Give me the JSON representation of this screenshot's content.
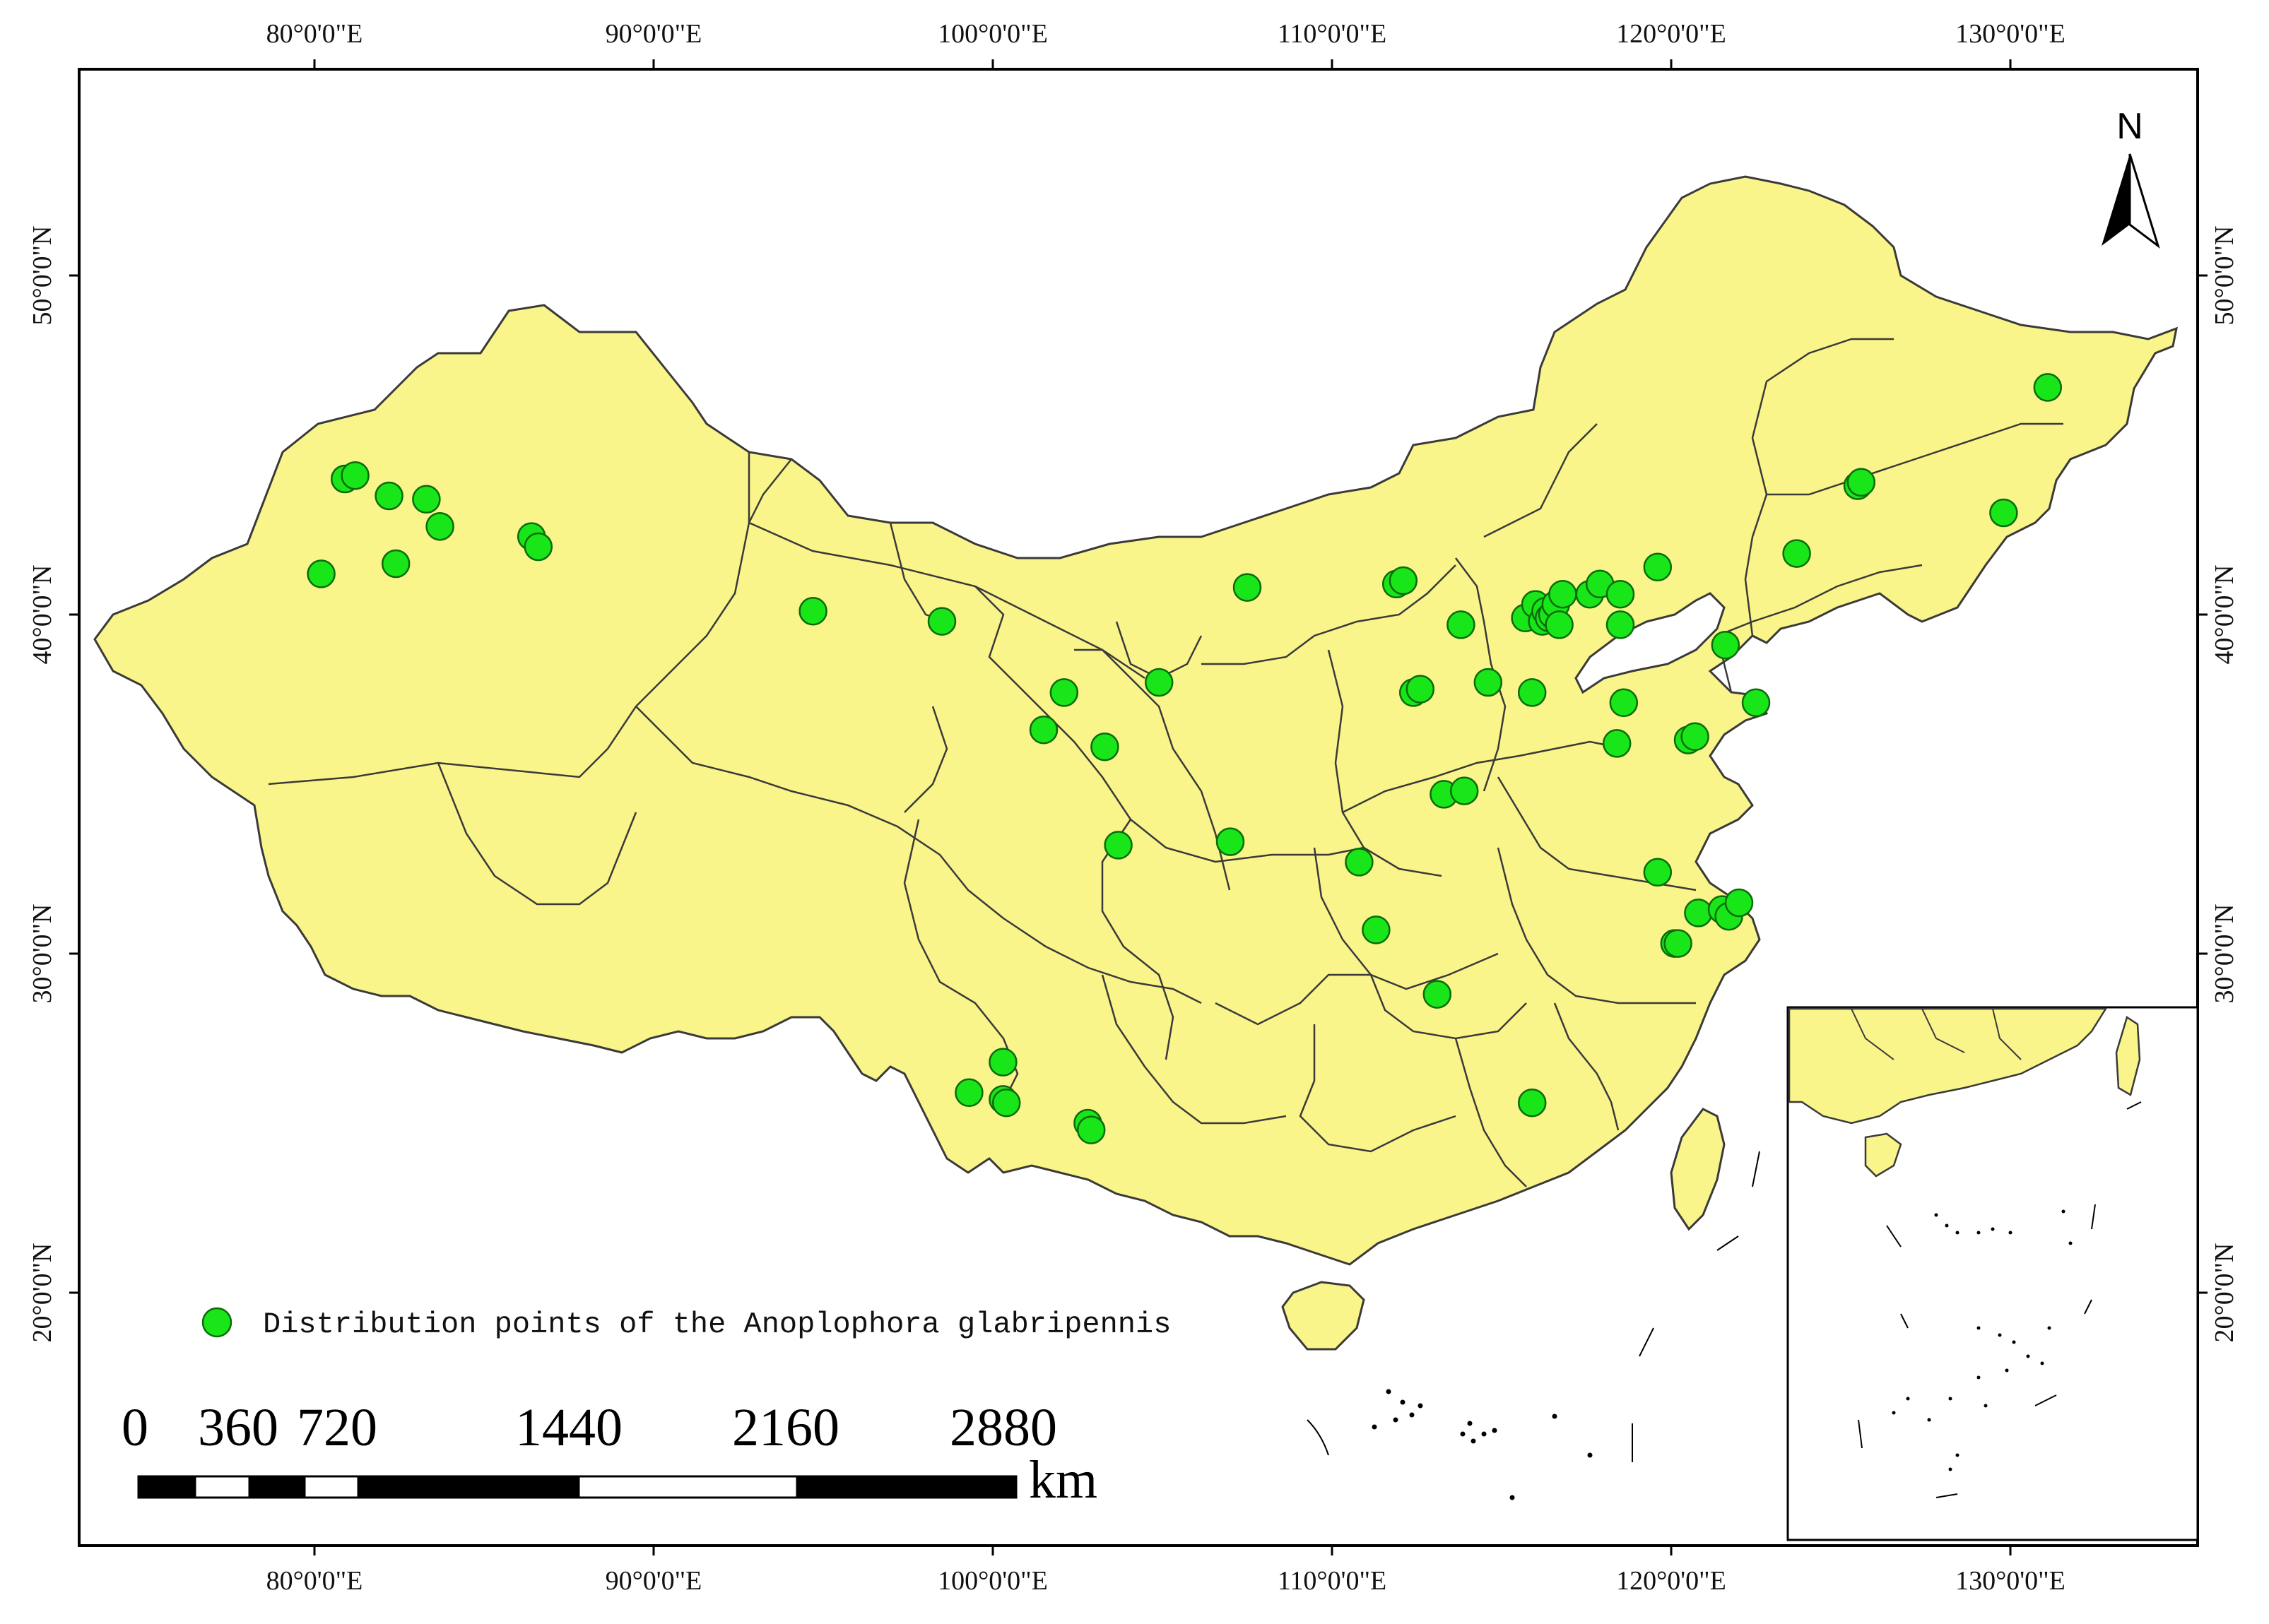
{
  "map": {
    "land_color": "#F9F58A",
    "boundary_color": "#3a3a3a",
    "point_color": "#19E619",
    "point_stroke": "#0b6b0b",
    "sea_color": "#ffffff",
    "top_axis": [
      "80°0'0\"E",
      "90°0'0\"E",
      "100°0'0\"E",
      "110°0'0\"E",
      "120°0'0\"E",
      "130°0'0\"E"
    ],
    "bottom_axis": [
      "80°0'0\"E",
      "90°0'0\"E",
      "100°0'0\"E",
      "110°0'0\"E",
      "120°0'0\"E",
      "130°0'0\"E"
    ],
    "left_axis": [
      "50°0'0\"N",
      "40°0'0\"N",
      "30°0'0\"N",
      "20°0'0\"N"
    ],
    "right_axis": [
      "50°0'0\"N",
      "40°0'0\"N",
      "30°0'0\"N",
      "20°0'0\"N"
    ],
    "north_arrow_label": "N",
    "legend_label": "Distribution points of the Anoplophora glabripennis",
    "scale_labels": [
      "0",
      "360",
      "720",
      "1440",
      "2160",
      "2880"
    ],
    "scale_unit": "km",
    "points": [
      [
        80.2,
        41.2
      ],
      [
        80.9,
        44.0
      ],
      [
        81.2,
        44.1
      ],
      [
        82.2,
        43.5
      ],
      [
        82.4,
        41.5
      ],
      [
        83.3,
        43.4
      ],
      [
        83.7,
        42.6
      ],
      [
        86.4,
        42.3
      ],
      [
        86.6,
        42.0
      ],
      [
        94.7,
        40.1
      ],
      [
        98.5,
        39.8
      ],
      [
        102.1,
        37.7
      ],
      [
        101.5,
        36.6
      ],
      [
        103.3,
        36.1
      ],
      [
        104.9,
        38.0
      ],
      [
        103.7,
        33.2
      ],
      [
        107.0,
        33.3
      ],
      [
        107.5,
        40.8
      ],
      [
        111.9,
        40.9
      ],
      [
        112.1,
        41.0
      ],
      [
        112.4,
        37.7
      ],
      [
        112.6,
        37.8
      ],
      [
        113.3,
        34.7
      ],
      [
        113.9,
        34.8
      ],
      [
        113.8,
        39.7
      ],
      [
        114.6,
        38.0
      ],
      [
        115.7,
        39.9
      ],
      [
        115.9,
        37.7
      ],
      [
        116.0,
        40.3
      ],
      [
        116.2,
        39.8
      ],
      [
        116.3,
        40.1
      ],
      [
        116.4,
        39.9
      ],
      [
        116.5,
        40.0
      ],
      [
        116.6,
        40.3
      ],
      [
        116.7,
        39.7
      ],
      [
        116.8,
        40.6
      ],
      [
        117.6,
        40.6
      ],
      [
        117.9,
        40.9
      ],
      [
        118.5,
        40.6
      ],
      [
        118.5,
        39.7
      ],
      [
        118.6,
        37.4
      ],
      [
        118.4,
        36.2
      ],
      [
        119.6,
        41.4
      ],
      [
        120.5,
        36.3
      ],
      [
        120.7,
        36.4
      ],
      [
        121.6,
        39.1
      ],
      [
        122.5,
        37.4
      ],
      [
        123.7,
        41.8
      ],
      [
        125.5,
        43.8
      ],
      [
        125.6,
        43.9
      ],
      [
        129.8,
        43.0
      ],
      [
        131.1,
        46.7
      ],
      [
        110.8,
        32.7
      ],
      [
        111.3,
        30.7
      ],
      [
        113.1,
        28.8
      ],
      [
        115.9,
        25.6
      ],
      [
        119.6,
        32.4
      ],
      [
        120.1,
        30.3
      ],
      [
        120.2,
        30.3
      ],
      [
        120.8,
        31.2
      ],
      [
        121.5,
        31.3
      ],
      [
        121.7,
        31.1
      ],
      [
        122.0,
        31.5
      ],
      [
        99.3,
        25.9
      ],
      [
        100.3,
        26.8
      ],
      [
        100.3,
        25.7
      ],
      [
        100.4,
        25.6
      ],
      [
        102.8,
        25.0
      ],
      [
        102.9,
        24.8
      ]
    ]
  }
}
